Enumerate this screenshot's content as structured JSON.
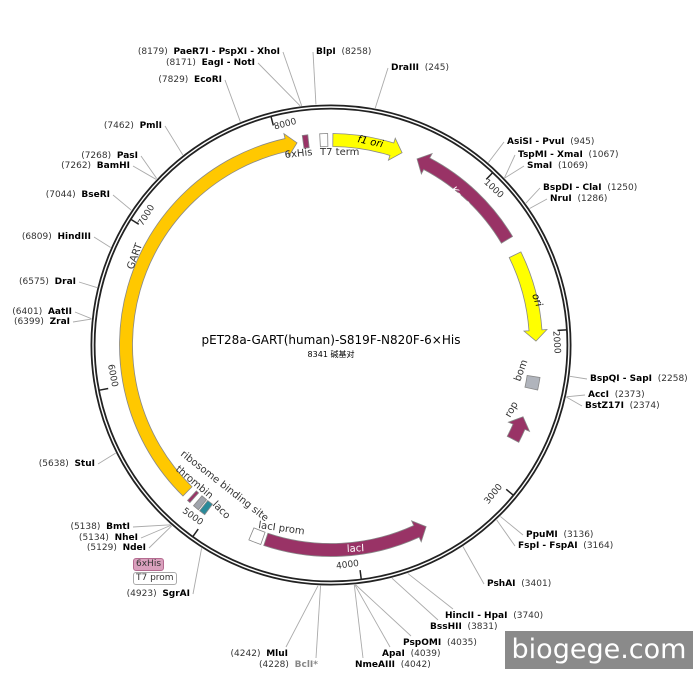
{
  "plasmid": {
    "title": "pET28a-GART(human)-S819F-N820F-6×His",
    "length_label": "8341 碱基对",
    "length_bp": 8341
  },
  "ticks": [
    "1000",
    "2000",
    "3000",
    "4000",
    "5000",
    "6000",
    "7000",
    "8000"
  ],
  "features": [
    {
      "name": "f1 ori",
      "start": 12,
      "end": 470,
      "color": "#FFFF00",
      "direction": "cw"
    },
    {
      "name": "KanR",
      "start": 1370,
      "end": 575,
      "color": "#993366",
      "direction": "ccw"
    },
    {
      "name": "ori",
      "start": 1480,
      "end": 2060,
      "color": "#FFFF00",
      "direction": "cw"
    },
    {
      "name": "bom",
      "start": 2290,
      "end": 2370,
      "color": "#B0B4BC",
      "direction": "none"
    },
    {
      "name": "rop",
      "start": 2720,
      "end": 2560,
      "color": "#993366",
      "direction": "ccw"
    },
    {
      "name": "lacI",
      "start": 4600,
      "end": 3530,
      "color": "#993366",
      "direction": "ccw"
    },
    {
      "name": "lacI prom",
      "start": 4620,
      "end": 4700,
      "color": "#FFFFFF",
      "direction": "none"
    },
    {
      "name": "laco",
      "start": 5020,
      "end": 5060,
      "color": "#2A8A9A",
      "direction": "none"
    },
    {
      "name": "thrombin",
      "start": 5070,
      "end": 5110,
      "color": "#A0A4AC",
      "direction": "none"
    },
    {
      "name": "ribosome binding site",
      "start": 5140,
      "end": 5160,
      "color": "#993366",
      "direction": "none"
    },
    {
      "name": "GART",
      "start": 5200,
      "end": 8120,
      "color": "#FFC800",
      "direction": "cw"
    },
    {
      "name": "6xHis",
      "start": 8160,
      "end": 8195,
      "color": "#993366",
      "direction": "none"
    },
    {
      "name": "T7 term",
      "start": 8270,
      "end": 8320,
      "color": "#FFFFFF",
      "direction": "none"
    }
  ],
  "enzymes": [
    {
      "name": "PaeR7I - PspXI - XhoI",
      "pos": 8179
    },
    {
      "name": "EagI - NotI",
      "pos": 8171
    },
    {
      "name": "EcoRI",
      "pos": 7829
    },
    {
      "name": "PmlI",
      "pos": 7462
    },
    {
      "name": "PasI",
      "pos": 7268
    },
    {
      "name": "BamHI",
      "pos": 7262
    },
    {
      "name": "BseRI",
      "pos": 7044
    },
    {
      "name": "HindIII",
      "pos": 6809
    },
    {
      "name": "DraI",
      "pos": 6575
    },
    {
      "name": "AatII",
      "pos": 6401
    },
    {
      "name": "ZraI",
      "pos": 6399
    },
    {
      "name": "StuI",
      "pos": 5638
    },
    {
      "name": "BmtI",
      "pos": 5138
    },
    {
      "name": "NheI",
      "pos": 5134
    },
    {
      "name": "NdeI",
      "pos": 5129
    },
    {
      "name": "SgrAI",
      "pos": 4923
    },
    {
      "name": "MluI",
      "pos": 4242
    },
    {
      "name": "BclI*",
      "pos": 4228,
      "methylation_blocked": true
    },
    {
      "name": "NmeAIII",
      "pos": 4042
    },
    {
      "name": "ApaI",
      "pos": 4039
    },
    {
      "name": "PspOMI",
      "pos": 4035
    },
    {
      "name": "BssHII",
      "pos": 3831
    },
    {
      "name": "HincII - HpaI",
      "pos": 3740
    },
    {
      "name": "PshAI",
      "pos": 3401
    },
    {
      "name": "FspI - FspAI",
      "pos": 3164
    },
    {
      "name": "PpuMI",
      "pos": 3136
    },
    {
      "name": "BstZ17I",
      "pos": 2374
    },
    {
      "name": "AccI",
      "pos": 2373
    },
    {
      "name": "BspQI - SapI",
      "pos": 2258
    },
    {
      "name": "NruI",
      "pos": 1286
    },
    {
      "name": "BspDI - ClaI",
      "pos": 1250
    },
    {
      "name": "SmaI",
      "pos": 1069
    },
    {
      "name": "TspMI - XmaI",
      "pos": 1067
    },
    {
      "name": "AsiSI - PvuI",
      "pos": 945
    },
    {
      "name": "DraIII",
      "pos": 245
    },
    {
      "name": "BlpI",
      "pos": 8258
    }
  ],
  "badges": {
    "his": "6xHis",
    "t7prom": "T7 prom"
  },
  "watermark": "biogege.com"
}
